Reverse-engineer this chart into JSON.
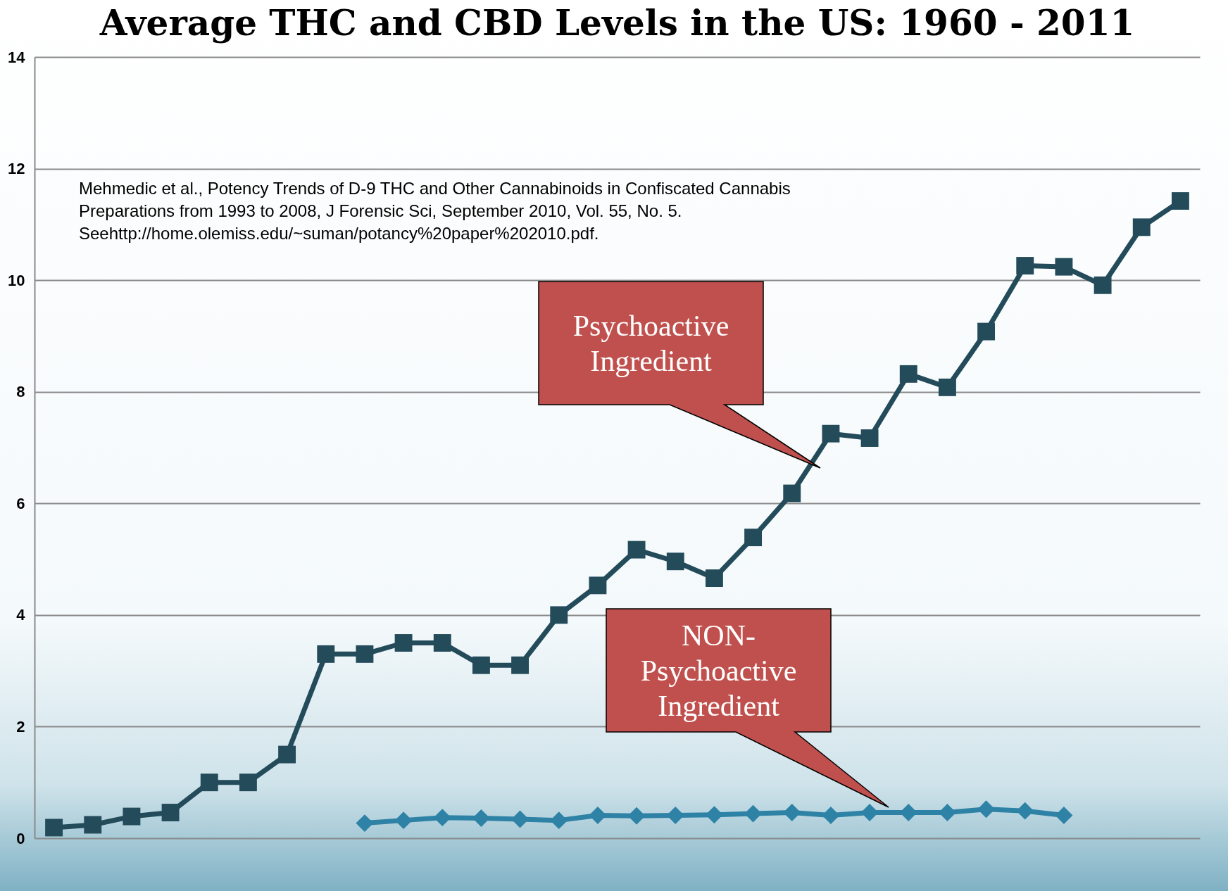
{
  "chart_data": {
    "type": "line",
    "title": "Average THC and CBD Levels in the US: 1960 - 2011",
    "categories": [
      null,
      null,
      null,
      null,
      null,
      null,
      null,
      null,
      null,
      null,
      null,
      null,
      null,
      null,
      null,
      null,
      null,
      null,
      null,
      null,
      null,
      null,
      null,
      null,
      null,
      null,
      null,
      null,
      null,
      null
    ],
    "series": [
      {
        "color": "#234b5a",
        "marker": "square",
        "values": [
          0.19,
          0.24,
          0.39,
          0.46,
          1.0,
          1.0,
          1.5,
          3.3,
          3.3,
          3.5,
          3.5,
          3.1,
          3.1,
          4.0,
          4.53,
          5.17,
          4.96,
          4.66,
          5.39,
          6.18,
          7.25,
          7.17,
          8.32,
          8.08,
          9.08,
          10.26,
          10.24,
          9.91,
          10.95,
          11.42
        ]
      },
      {
        "color": "#2e82a6",
        "marker": "diamond",
        "values": [
          null,
          null,
          null,
          null,
          null,
          null,
          null,
          null,
          0.27,
          0.32,
          0.37,
          0.36,
          0.34,
          0.32,
          0.41,
          0.4,
          0.41,
          0.42,
          0.44,
          0.46,
          0.41,
          0.46,
          0.46,
          0.46,
          0.52,
          0.49,
          0.41,
          null,
          null,
          null
        ]
      }
    ],
    "ylim": [
      0,
      14
    ],
    "yticks": [
      0,
      2,
      4,
      6,
      8,
      10,
      12,
      14
    ],
    "grid": "y",
    "tick_labels": "y",
    "annotations": [
      "Mehmedic et al., Potency Trends of D-9 THC and Other Cannabinoids in Confiscated Cannabis Preparations from 1993 to 2008, J Forensic Sci, September 2010, Vol. 55, No. 5. Seehttp://home.olemiss.edu/~suman/potancy%20paper%202010.pdf.",
      "Psychoactive Ingredient",
      "NON-Psychoactive Ingredient"
    ]
  }
}
